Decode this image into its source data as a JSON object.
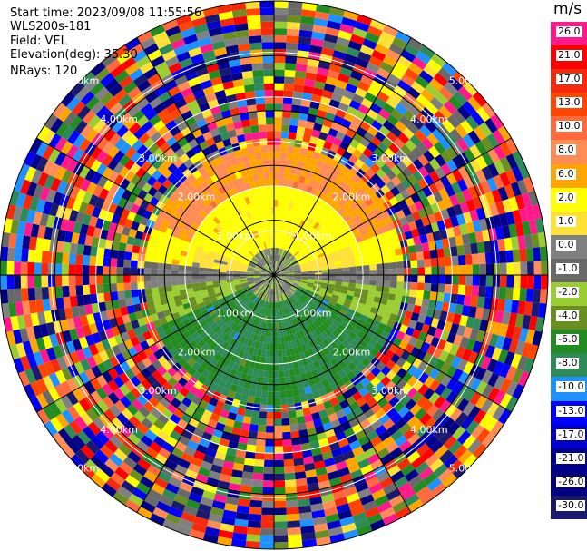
{
  "header": {
    "start_time": "Start time: 2023/09/08 11:55:56",
    "site": "WLS200s-181",
    "field": "Field: VEL",
    "elevation": "Elevation(deg): 35.30",
    "nrays": "NRays: 120"
  },
  "chart_data": {
    "type": "heatmap",
    "projection": "polar-ppi",
    "field": "VEL",
    "units": "m/s",
    "n_rays": 120,
    "elevation_deg": 35.3,
    "range_rings_km": [
      1.0,
      2.0,
      3.0,
      4.0,
      5.0
    ],
    "range_ring_labels": [
      "1.00km",
      "2.00km",
      "3.00km",
      "4.00km",
      "5.00km"
    ],
    "max_range_km": 5.0,
    "colorbar": {
      "unit_label": "m/s",
      "ticks": [
        "26.0",
        "21.0",
        "17.0",
        "13.0",
        "10.0",
        "8.0",
        "6.0",
        "2.0",
        "1.0",
        "0.0",
        "-1.0",
        "-2.0",
        "-4.0",
        "-6.0",
        "-8.0",
        "-10.0",
        "-13.0",
        "-17.0",
        "-21.0",
        "-26.0",
        "-30.0"
      ],
      "colors": [
        "#ff1a8c",
        "#ff0000",
        "#f52a0c",
        "#ff4500",
        "#ff6a3d",
        "#ff8c55",
        "#ffa500",
        "#ffff00",
        "#ffe135",
        "#808080",
        "#696969",
        "#9acd32",
        "#6b8e23",
        "#228b22",
        "#2e8b57",
        "#1e90ff",
        "#0000ff",
        "#0000cd",
        "#00008b",
        "#000080",
        "#191970"
      ]
    },
    "structure": {
      "clutter_free_radius_km": 2.0,
      "pattern": "south half negative (greens), north half positive (oranges/yellows), near-zero band (greys) along east-west axis; beyond ~2 km ranges are dominated by noisy random colors"
    }
  },
  "colors": {
    "background": "#ffffff",
    "ring": "#000000",
    "ring_label": "#ffffff"
  }
}
